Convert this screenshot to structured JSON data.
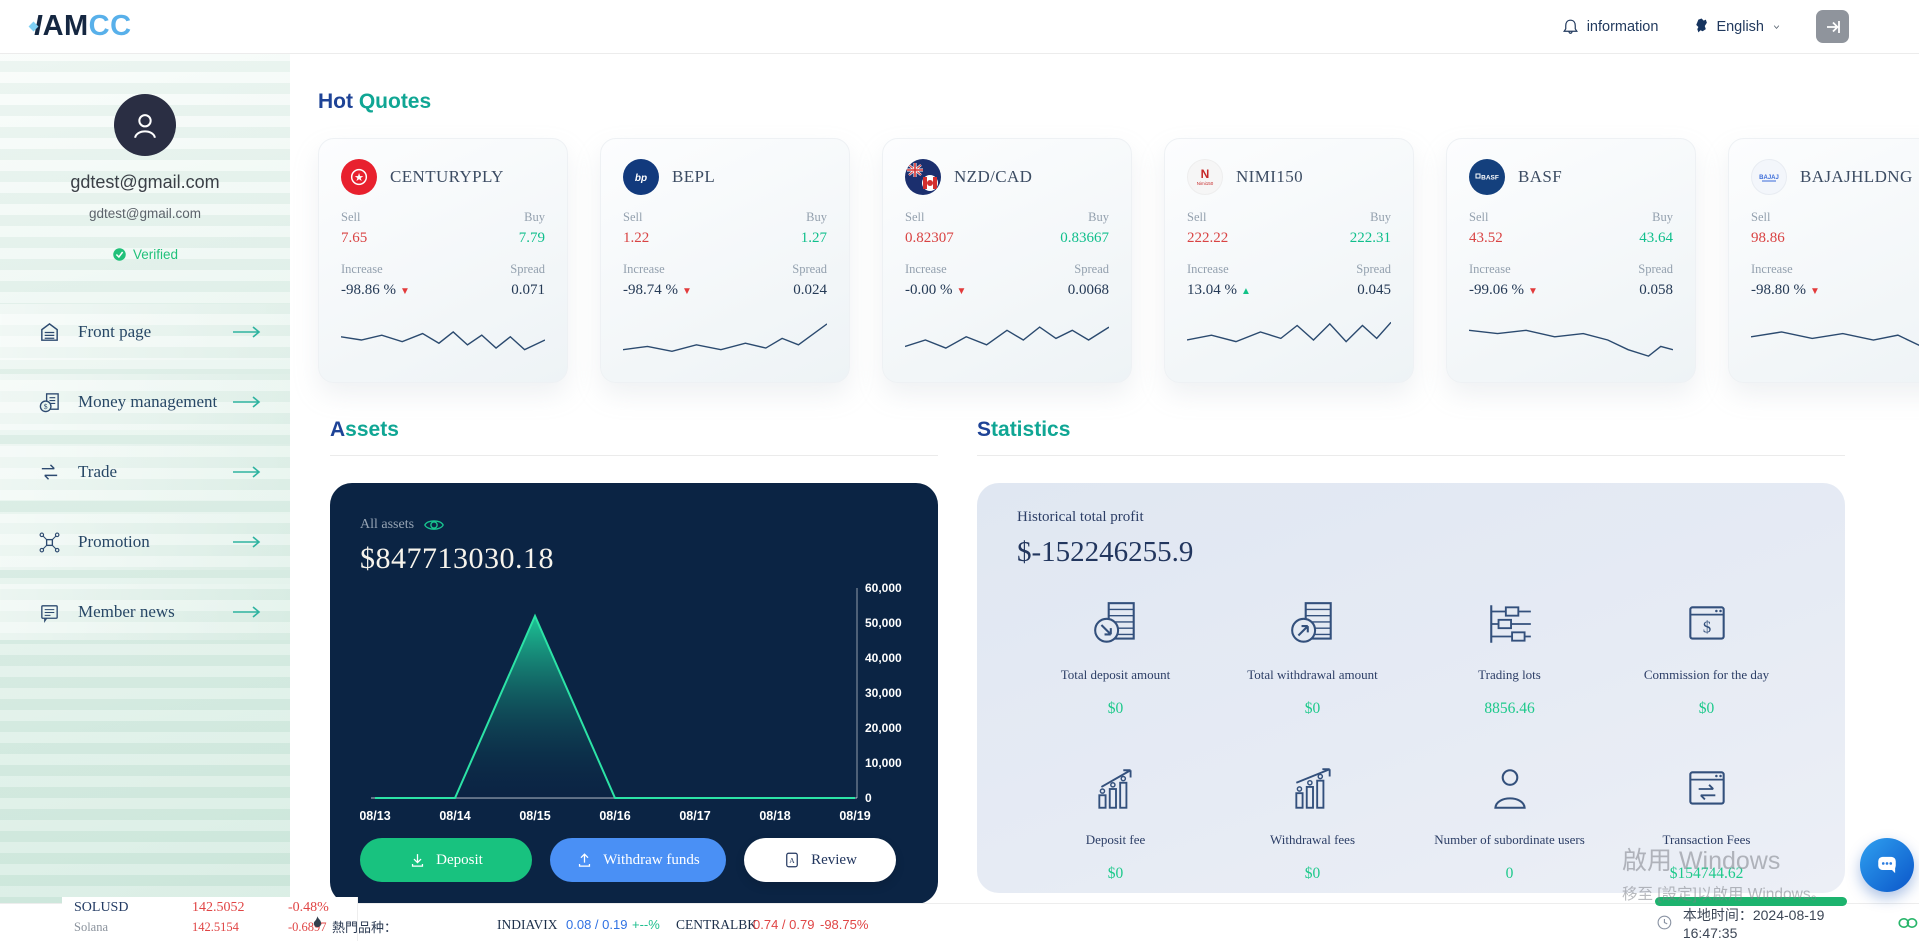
{
  "header": {
    "logo_part1": "I",
    "logo_part2": "AM",
    "logo_part3": "CC",
    "information_label": "information",
    "language_label": "English",
    "colors": {
      "logo_navy": "#152741",
      "logo_blue": "#58b0ea",
      "accent_teal": "#10a694",
      "accent_navy": "#1e4396"
    }
  },
  "sidebar": {
    "email_primary": "gdtest@gmail.com",
    "email_secondary": "gdtest@gmail.com",
    "verified_label": "Verified",
    "items": [
      {
        "label": "Front page",
        "icon": "home-icon"
      },
      {
        "label": "Money management",
        "icon": "money-icon"
      },
      {
        "label": "Trade",
        "icon": "trade-icon"
      },
      {
        "label": "Promotion",
        "icon": "promotion-icon"
      },
      {
        "label": "Member news",
        "icon": "news-icon"
      }
    ]
  },
  "hot_quotes": {
    "title_word1": "Hot ",
    "title_word2": "Quotes",
    "field_labels": {
      "sell": "Sell",
      "buy": "Buy",
      "increase": "Increase",
      "spread": "Spread"
    },
    "cards": [
      {
        "symbol": "CENTURYPLY",
        "icon": "centuryply-logo",
        "sell": "7.65",
        "buy": "7.79",
        "increase": "-98.86 %",
        "arrow": "▼",
        "trend": "down",
        "spread": "0.071"
      },
      {
        "symbol": "BEPL",
        "icon": "bepl-logo",
        "sell": "1.22",
        "buy": "1.27",
        "increase": "-98.74 %",
        "arrow": "▼",
        "trend": "down",
        "spread": "0.024"
      },
      {
        "symbol": "NZD/CAD",
        "icon": "nzdcad-flag-logo",
        "sell": "0.82307",
        "buy": "0.83667",
        "increase": "-0.00 %",
        "arrow": "▼",
        "trend": "down",
        "spread": "0.0068"
      },
      {
        "symbol": "NIMI150",
        "icon": "nimi150-logo",
        "sell": "222.22",
        "buy": "222.31",
        "increase": "13.04 %",
        "arrow": "▲",
        "trend": "up",
        "spread": "0.045"
      },
      {
        "symbol": "BASF",
        "icon": "basf-logo",
        "sell": "43.52",
        "buy": "43.64",
        "increase": "-99.06 %",
        "arrow": "▼",
        "trend": "down",
        "spread": "0.058"
      },
      {
        "symbol": "BAJAJHLDNG",
        "icon": "bajajhldng-logo",
        "sell": "98.86",
        "buy": "",
        "increase": "-98.80 %",
        "arrow": "▼",
        "trend": "down",
        "spread": ""
      }
    ]
  },
  "assets": {
    "title_letter": "A",
    "title_rest": "ssets",
    "all_assets_label": "All assets",
    "amount": "$847713030.18",
    "buttons": [
      {
        "label": "Deposit",
        "icon": "deposit-icon"
      },
      {
        "label": "Withdraw funds",
        "icon": "withdraw-icon"
      },
      {
        "label": "Review",
        "icon": "review-icon"
      }
    ]
  },
  "statistics": {
    "title_letter": "S",
    "title_rest": "tatistics",
    "profit_label": "Historical total profit",
    "profit_value": "$-152246255.9",
    "value_color": "#1dc98b",
    "items": [
      {
        "label": "Total deposit amount",
        "value": "$0",
        "icon": "total-deposit-icon"
      },
      {
        "label": "Total withdrawal amount",
        "value": "$0",
        "icon": "total-withdrawal-icon"
      },
      {
        "label": "Trading lots",
        "value": "8856.46",
        "icon": "trading-lots-icon"
      },
      {
        "label": "Commission for the day",
        "value": "$0",
        "icon": "commission-icon"
      },
      {
        "label": "Deposit fee",
        "value": "$0",
        "icon": "deposit-fee-icon"
      },
      {
        "label": "Withdrawal fees",
        "value": "$0",
        "icon": "withdrawal-fees-icon"
      },
      {
        "label": "Number of subordinate users",
        "value": "0",
        "icon": "subordinate-users-icon"
      },
      {
        "label": "Transaction Fees",
        "value": "$154744.62",
        "icon": "transaction-fees-icon"
      }
    ]
  },
  "ticker": {
    "left": {
      "symbol": "SOLUSD",
      "symbol_price": "142.5052",
      "symbol_change": "-0.48%",
      "name": "Solana",
      "name_price": "142.5154",
      "name_change": "-0.6897"
    },
    "hot_label": "熱門品种：",
    "quotes": [
      {
        "symbol": "INDIAVIX",
        "prices": "0.08 / 0.19",
        "change": "+--%",
        "price_color": "#3072e3",
        "change_color": "#1fbf8f"
      },
      {
        "symbol": "CENTRALBK",
        "prices": "0.74 / 0.79",
        "change": "-98.75%",
        "price_color": "#e04545",
        "change_color": "#e04545"
      }
    ]
  },
  "time_bar": {
    "label": "本地时间：2024-08-19 16:47:35"
  },
  "watermark": {
    "line1": "啟用 Windows",
    "line2": "移至 [設定]以啟用 Windows。"
  },
  "chart_data": {
    "type": "area",
    "title": "All assets history",
    "x": [
      "08/13",
      "08/14",
      "08/15",
      "08/16",
      "08/17",
      "08/18",
      "08/19"
    ],
    "values": [
      0,
      0,
      52000,
      0,
      0,
      0,
      0
    ],
    "ylim": [
      0,
      60000
    ],
    "yticks": [
      0,
      10000,
      20000,
      30000,
      40000,
      50000,
      60000
    ],
    "line_color": "#2ce3a6",
    "grid": false,
    "sparkline_color": "#2b4a6f",
    "sparklines": [
      {
        "symbol": "CENTURYPLY",
        "points": [
          [
            0,
            16
          ],
          [
            10,
            18
          ],
          [
            20,
            15
          ],
          [
            30,
            19
          ],
          [
            40,
            14
          ],
          [
            48,
            20
          ],
          [
            55,
            13
          ],
          [
            62,
            21
          ],
          [
            69,
            15
          ],
          [
            76,
            23
          ],
          [
            83,
            16
          ],
          [
            90,
            24
          ],
          [
            100,
            18
          ]
        ]
      },
      {
        "symbol": "BEPL",
        "points": [
          [
            0,
            24
          ],
          [
            12,
            22
          ],
          [
            24,
            25
          ],
          [
            36,
            21
          ],
          [
            48,
            24
          ],
          [
            60,
            20
          ],
          [
            70,
            23
          ],
          [
            78,
            17
          ],
          [
            86,
            21
          ],
          [
            100,
            8
          ]
        ]
      },
      {
        "symbol": "NZD/CAD",
        "points": [
          [
            0,
            22
          ],
          [
            10,
            18
          ],
          [
            20,
            23
          ],
          [
            30,
            16
          ],
          [
            40,
            21
          ],
          [
            50,
            12
          ],
          [
            58,
            18
          ],
          [
            66,
            10
          ],
          [
            74,
            17
          ],
          [
            82,
            12
          ],
          [
            90,
            18
          ],
          [
            100,
            10
          ]
        ]
      },
      {
        "symbol": "NIMI150",
        "points": [
          [
            0,
            18
          ],
          [
            12,
            15
          ],
          [
            24,
            19
          ],
          [
            36,
            13
          ],
          [
            46,
            17
          ],
          [
            54,
            9
          ],
          [
            62,
            18
          ],
          [
            70,
            8
          ],
          [
            78,
            19
          ],
          [
            86,
            9
          ],
          [
            93,
            17
          ],
          [
            100,
            7
          ]
        ]
      },
      {
        "symbol": "BASF",
        "points": [
          [
            0,
            12
          ],
          [
            14,
            14
          ],
          [
            28,
            12
          ],
          [
            42,
            16
          ],
          [
            56,
            14
          ],
          [
            68,
            18
          ],
          [
            78,
            24
          ],
          [
            88,
            28
          ],
          [
            94,
            22
          ],
          [
            100,
            24
          ]
        ]
      },
      {
        "symbol": "BAJAJHLDNG",
        "points": [
          [
            0,
            16
          ],
          [
            15,
            13
          ],
          [
            30,
            17
          ],
          [
            45,
            14
          ],
          [
            60,
            18
          ],
          [
            72,
            15
          ],
          [
            82,
            21
          ],
          [
            90,
            26
          ],
          [
            100,
            18
          ]
        ]
      }
    ]
  }
}
